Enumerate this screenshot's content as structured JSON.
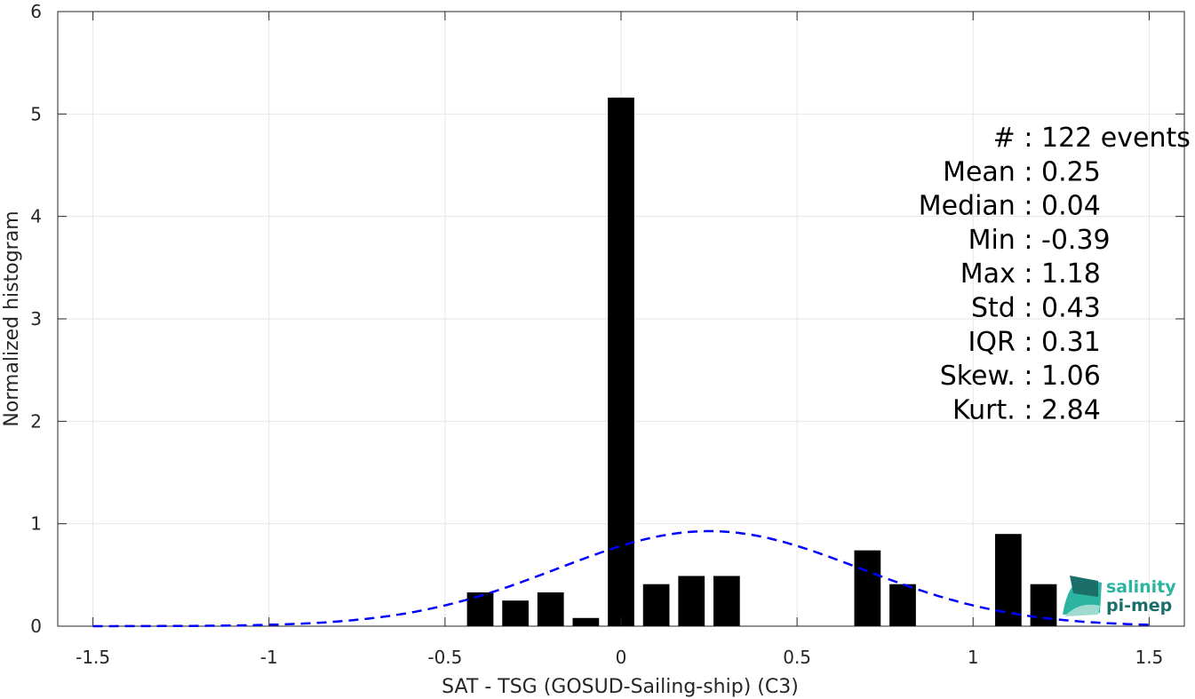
{
  "chart_data": {
    "type": "bar",
    "xlabel": "SAT - TSG (GOSUD-Sailing-ship) (C3)",
    "ylabel": "Normalized histogram",
    "xlim": [
      -1.6,
      1.6
    ],
    "ylim": [
      0,
      6
    ],
    "xticks": [
      -1.5,
      -1,
      -0.5,
      0,
      0.5,
      1,
      1.5
    ],
    "xtick_labels": [
      "-1.5",
      "-1",
      "-0.5",
      "0",
      "0.5",
      "1",
      "1.5"
    ],
    "yticks": [
      0,
      1,
      2,
      3,
      4,
      5,
      6
    ],
    "ytick_labels": [
      "0",
      "1",
      "2",
      "3",
      "4",
      "5",
      "6"
    ],
    "grid": true,
    "bar_width": 0.075,
    "bars": {
      "color": "#000000",
      "x": [
        -0.4,
        -0.3,
        -0.2,
        -0.1,
        0.0,
        0.1,
        0.2,
        0.3,
        0.7,
        0.8,
        1.1,
        1.2
      ],
      "values": [
        0.33,
        0.25,
        0.33,
        0.08,
        5.16,
        0.41,
        0.49,
        0.49,
        0.74,
        0.41,
        0.9,
        0.41
      ]
    },
    "fit_curve": {
      "style": "dashed",
      "color": "#0000ff",
      "distribution": "normal",
      "mean": 0.25,
      "std": 0.43,
      "x_range": [
        -1.5,
        1.5
      ]
    },
    "annotations": [
      {
        "label": "#",
        "sep": " : ",
        "value": "122 events"
      },
      {
        "label": "Mean",
        "sep": " : ",
        "value": "0.25"
      },
      {
        "label": "Median",
        "sep": " : ",
        "value": "0.04"
      },
      {
        "label": "Min",
        "sep": " : ",
        "value": "-0.39"
      },
      {
        "label": "Max",
        "sep": " : ",
        "value": "1.18"
      },
      {
        "label": "Std",
        "sep": " : ",
        "value": "0.43"
      },
      {
        "label": "IQR",
        "sep": " : ",
        "value": "0.31"
      },
      {
        "label": "Skew.",
        "sep": " : ",
        "value": "1.06"
      },
      {
        "label": "Kurt.",
        "sep": " : ",
        "value": "2.84"
      }
    ]
  },
  "logo": {
    "line1": "salinity",
    "line2": "pi-mep",
    "color_light": "#2bb5a0",
    "color_dark": "#1a6f6a"
  }
}
